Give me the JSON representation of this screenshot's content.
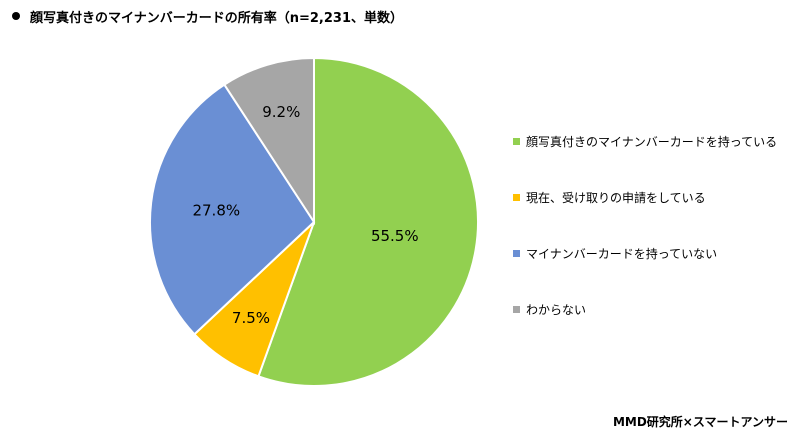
{
  "chart_data": {
    "type": "pie",
    "title": "顔写真付きのマイナンバーカードの所有率（n=2,231、単数）",
    "categories": [
      "顔写真付きのマイナンバーカードを持っている",
      "現在、受け取りの申請をしている",
      "マイナンバーカードを持っていない",
      "わからない"
    ],
    "values": [
      55.5,
      7.5,
      27.8,
      9.2
    ],
    "value_labels": [
      "55.5%",
      "7.5%",
      "27.8%",
      "9.2%"
    ],
    "colors": [
      "#92d050",
      "#ffc000",
      "#6a8fd4",
      "#a6a6a6"
    ],
    "legend": "right"
  },
  "source": "MMD研究所×スマートアンサー"
}
